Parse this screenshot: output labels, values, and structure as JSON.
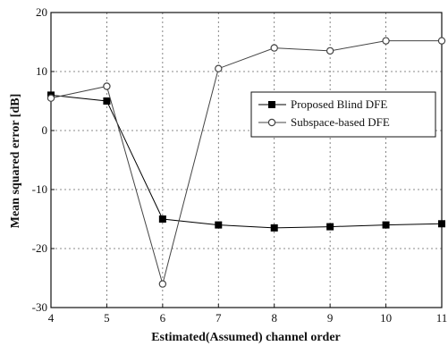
{
  "chart_data": {
    "type": "line",
    "title": "",
    "xlabel": "Estimated(Assumed) channel order",
    "ylabel": "Mean squared error [dB]",
    "x": [
      4,
      5,
      6,
      7,
      8,
      9,
      10,
      11
    ],
    "xlim": [
      4,
      11
    ],
    "ylim": [
      -30,
      20
    ],
    "xticks": [
      "4",
      "5",
      "6",
      "7",
      "8",
      "9",
      "10",
      "11"
    ],
    "yticks": [
      "-30",
      "-20",
      "-10",
      "0",
      "10",
      "20"
    ],
    "grid": true,
    "legend_position": "right-center",
    "series": [
      {
        "name": "Proposed Blind DFE",
        "marker": "filled-square",
        "color": "#000000",
        "values": [
          6,
          5,
          -15,
          -16,
          -16.5,
          -16.3,
          -16,
          -15.8
        ]
      },
      {
        "name": "Subspace-based DFE",
        "marker": "open-circle",
        "color": "#444444",
        "values": [
          5.5,
          7.5,
          -26,
          10.5,
          14,
          13.5,
          15.2,
          15.2
        ]
      }
    ]
  }
}
